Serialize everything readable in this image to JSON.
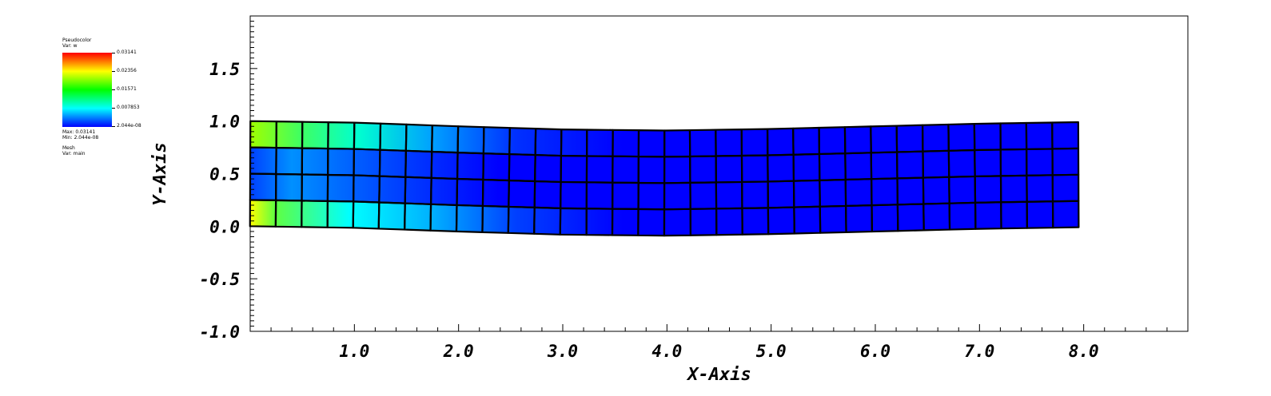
{
  "legend": {
    "plot_type": "Pseudocolor",
    "var_label": "Var: w",
    "colorbar_ticks": [
      "0.03141",
      "0.02356",
      "0.01571",
      "0.007853",
      "2.044e-08"
    ],
    "max_label": "Max: 0.03141",
    "min_label": "Min: 2.044e-08",
    "mesh_label": "Mesh",
    "mesh_var_label": "Var: main",
    "colormap": [
      "#ff0000",
      "#ffff00",
      "#00ff00",
      "#00ffff",
      "#0000ff"
    ]
  },
  "chart_data": {
    "type": "heatmap",
    "xlabel": "X-Axis",
    "ylabel": "Y-Axis",
    "xlim": [
      0,
      9.0
    ],
    "ylim": [
      -1.0,
      2.0
    ],
    "x_ticks": [
      1.0,
      2.0,
      3.0,
      4.0,
      5.0,
      6.0,
      7.0,
      8.0
    ],
    "x_tick_labels": [
      "1.0",
      "2.0",
      "3.0",
      "4.0",
      "5.0",
      "6.0",
      "7.0",
      "8.0"
    ],
    "y_ticks": [
      -1.0,
      -0.5,
      0.0,
      0.5,
      1.0,
      1.5
    ],
    "y_tick_labels": [
      "-1.0",
      "-0.5",
      "0.0",
      "0.5",
      "1.0",
      "1.5"
    ],
    "variable": "w",
    "min": 2.044e-08,
    "max": 0.03141,
    "mesh": {
      "name": "main",
      "cols": 32,
      "rows": 4,
      "x_start": 0.0,
      "x_end": 7.95,
      "deflection_at_x": [
        [
          0.0,
          0.0
        ],
        [
          1.0,
          -0.015
        ],
        [
          2.0,
          -0.05
        ],
        [
          3.0,
          -0.08
        ],
        [
          4.0,
          -0.09
        ],
        [
          5.0,
          -0.075
        ],
        [
          6.0,
          -0.05
        ],
        [
          7.0,
          -0.025
        ],
        [
          7.95,
          -0.01
        ]
      ],
      "height": 1.0
    }
  }
}
